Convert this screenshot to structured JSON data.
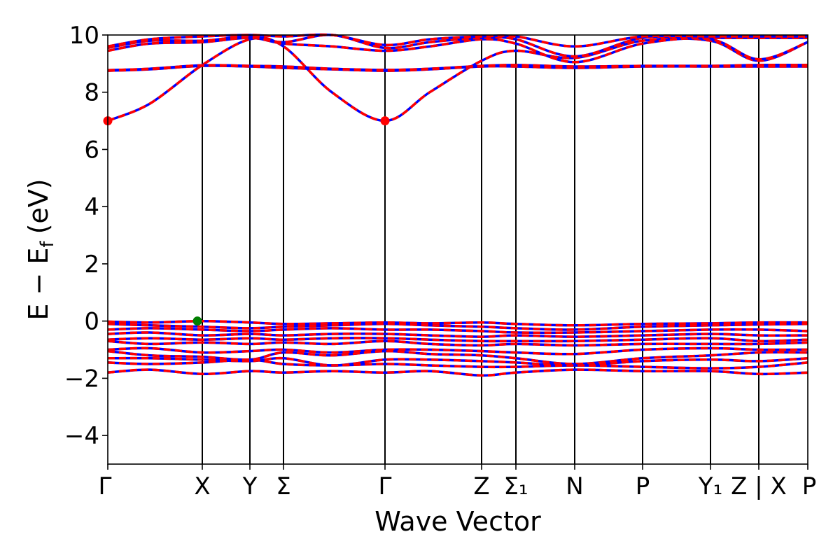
{
  "chart_data": {
    "type": "line",
    "xlabel": "Wave Vector",
    "ylabel": "E − E_f (eV)",
    "ylabel_parts": {
      "main": "E − E",
      "sub": "f",
      "unit": "(eV)"
    },
    "ylim": [
      -5,
      10
    ],
    "yticks": [
      -4,
      -2,
      0,
      2,
      4,
      6,
      8,
      10
    ],
    "ytick_labels": [
      "−4",
      "−2",
      "0",
      "2",
      "4",
      "6",
      "8",
      "10"
    ],
    "xlim": [
      0,
      100
    ],
    "high_symmetry_points": [
      {
        "label": "Γ",
        "x": 0
      },
      {
        "label": "X",
        "x": 13.5
      },
      {
        "label": "Y",
        "x": 20.3
      },
      {
        "label": "Σ",
        "x": 25.1
      },
      {
        "label": "Γ",
        "x": 39.6
      },
      {
        "label": "Z",
        "x": 53.4
      },
      {
        "label": "Σ₁",
        "x": 58.3
      },
      {
        "label": "N",
        "x": 66.7
      },
      {
        "label": "P",
        "x": 76.4
      },
      {
        "label": "Y₁",
        "x": 86.1
      },
      {
        "label": "Z | X",
        "x": 93.0
      },
      {
        "label": "P",
        "x": 100
      }
    ],
    "series_colors": {
      "spin_up": "#0000ff",
      "spin_down": "#ff0000"
    },
    "markers": [
      {
        "type": "CBM",
        "x": 0,
        "y": 7.0,
        "color": "#ff0000"
      },
      {
        "type": "CBM",
        "x": 39.6,
        "y": 7.0,
        "color": "#ff0000"
      },
      {
        "type": "VBM",
        "x": 12.8,
        "y": 0.0,
        "color": "#007f00"
      }
    ],
    "bands": [
      {
        "x": [
          0,
          6,
          13.5,
          20.3,
          25.1,
          32,
          39.6,
          46,
          53.4,
          58.3,
          66.7,
          76.4,
          86.1,
          93.0,
          100
        ],
        "y": [
          7.0,
          7.6,
          8.95,
          9.85,
          9.6,
          8.0,
          7.0,
          8.0,
          9.1,
          9.45,
          9.2,
          9.8,
          9.8,
          9.1,
          9.75
        ]
      },
      {
        "x": [
          0,
          6,
          13.5,
          20.3,
          25.1,
          32,
          39.6,
          46,
          53.4,
          58.3,
          66.7,
          76.4,
          86.1,
          93.0,
          100
        ],
        "y": [
          8.75,
          8.8,
          8.92,
          8.9,
          8.85,
          8.8,
          8.75,
          8.8,
          8.9,
          8.9,
          8.85,
          8.9,
          8.9,
          8.9,
          8.9
        ]
      },
      {
        "x": [
          0,
          6,
          13.5,
          20.3,
          25.1,
          32,
          39.6,
          46,
          53.4,
          58.3,
          66.7,
          76.4,
          86.1,
          93.0,
          100
        ],
        "y": [
          8.77,
          8.82,
          8.94,
          8.92,
          8.9,
          8.82,
          8.78,
          8.82,
          8.92,
          8.95,
          8.9,
          8.92,
          8.92,
          8.95,
          8.95
        ]
      },
      {
        "x": [
          0,
          6,
          13.5,
          20.3,
          25.1,
          32,
          39.6,
          46,
          53.4,
          58.3,
          66.7,
          76.4,
          86.1,
          93.0,
          100
        ],
        "y": [
          9.45,
          9.7,
          9.75,
          9.9,
          9.7,
          9.6,
          9.45,
          9.6,
          9.85,
          9.7,
          9.05,
          9.7,
          9.85,
          9.15,
          9.75
        ]
      },
      {
        "x": [
          0,
          6,
          13.5,
          20.3,
          25.1,
          32,
          39.6,
          46,
          53.4,
          58.3,
          66.7,
          76.4,
          86.1,
          93.0,
          100
        ],
        "y": [
          9.55,
          9.8,
          9.8,
          9.95,
          9.75,
          10.0,
          9.55,
          9.75,
          9.9,
          9.85,
          9.25,
          9.9,
          9.9,
          9.9,
          9.9
        ]
      },
      {
        "x": [
          0,
          6,
          13.5,
          20.3,
          25.1,
          32,
          39.6,
          46,
          53.4,
          58.3,
          66.7,
          76.4,
          86.1,
          93.0,
          100
        ],
        "y": [
          9.6,
          9.85,
          9.95,
          10.0,
          9.95,
          10.0,
          9.65,
          9.85,
          9.95,
          9.95,
          9.6,
          9.95,
          9.95,
          9.95,
          9.95
        ]
      },
      {
        "x": [
          0,
          6,
          13.5,
          20.3,
          25.1,
          32,
          39.6,
          46,
          53.4,
          58.3,
          66.7,
          76.4,
          86.1,
          93.0,
          100
        ],
        "y": [
          -0.02,
          -0.05,
          0.0,
          -0.05,
          -0.1,
          -0.08,
          -0.05,
          -0.08,
          -0.05,
          -0.1,
          -0.15,
          -0.1,
          -0.08,
          -0.05,
          -0.05
        ]
      },
      {
        "x": [
          0,
          6,
          13.5,
          20.3,
          25.1,
          32,
          39.6,
          46,
          53.4,
          58.3,
          66.7,
          76.4,
          86.1,
          93.0,
          100
        ],
        "y": [
          -0.1,
          -0.15,
          -0.2,
          -0.25,
          -0.2,
          -0.15,
          -0.1,
          -0.15,
          -0.2,
          -0.25,
          -0.3,
          -0.2,
          -0.15,
          -0.12,
          -0.1
        ]
      },
      {
        "x": [
          0,
          6,
          13.5,
          20.3,
          25.1,
          32,
          39.6,
          46,
          53.4,
          58.3,
          66.7,
          76.4,
          86.1,
          93.0,
          100
        ],
        "y": [
          -0.3,
          -0.25,
          -0.3,
          -0.35,
          -0.3,
          -0.25,
          -0.3,
          -0.3,
          -0.35,
          -0.4,
          -0.4,
          -0.35,
          -0.3,
          -0.3,
          -0.35
        ]
      },
      {
        "x": [
          0,
          6,
          13.5,
          20.3,
          25.1,
          32,
          39.6,
          46,
          53.4,
          58.3,
          66.7,
          76.4,
          86.1,
          93.0,
          100
        ],
        "y": [
          -0.45,
          -0.4,
          -0.5,
          -0.45,
          -0.5,
          -0.45,
          -0.45,
          -0.5,
          -0.55,
          -0.5,
          -0.55,
          -0.5,
          -0.45,
          -0.5,
          -0.5
        ]
      },
      {
        "x": [
          0,
          6,
          13.5,
          20.3,
          25.1,
          32,
          39.6,
          46,
          53.4,
          58.3,
          66.7,
          76.4,
          86.1,
          93.0,
          100
        ],
        "y": [
          -0.65,
          -0.6,
          -0.65,
          -0.6,
          -0.65,
          -0.6,
          -0.6,
          -0.65,
          -0.7,
          -0.7,
          -0.7,
          -0.65,
          -0.6,
          -0.7,
          -0.65
        ]
      },
      {
        "x": [
          0,
          6,
          13.5,
          20.3,
          25.1,
          32,
          39.6,
          46,
          53.4,
          58.3,
          66.7,
          76.4,
          86.1,
          93.0,
          100
        ],
        "y": [
          -0.7,
          -0.8,
          -0.75,
          -0.8,
          -0.75,
          -0.8,
          -0.7,
          -0.8,
          -0.85,
          -0.8,
          -0.85,
          -0.8,
          -0.8,
          -0.8,
          -0.75
        ]
      },
      {
        "x": [
          0,
          6,
          13.5,
          20.3,
          25.1,
          32,
          39.6,
          46,
          53.4,
          58.3,
          66.7,
          76.4,
          86.1,
          93.0,
          100
        ],
        "y": [
          -1.0,
          -0.95,
          -1.1,
          -1.05,
          -1.0,
          -1.1,
          -1.0,
          -1.0,
          -1.05,
          -1.1,
          -1.15,
          -1.0,
          -0.95,
          -1.0,
          -1.0
        ]
      },
      {
        "x": [
          0,
          6,
          13.5,
          20.3,
          25.1,
          32,
          39.6,
          46,
          53.4,
          58.3,
          66.7,
          76.4,
          86.1,
          93.0,
          100
        ],
        "y": [
          -1.05,
          -1.2,
          -1.25,
          -1.35,
          -1.1,
          -1.2,
          -1.05,
          -1.15,
          -1.2,
          -1.3,
          -1.5,
          -1.3,
          -1.2,
          -1.1,
          -1.1
        ]
      },
      {
        "x": [
          0,
          6,
          13.5,
          20.3,
          25.1,
          32,
          39.6,
          46,
          53.4,
          58.3,
          66.7,
          76.4,
          86.1,
          93.0,
          100
        ],
        "y": [
          -1.3,
          -1.3,
          -1.35,
          -1.4,
          -1.3,
          -1.55,
          -1.35,
          -1.35,
          -1.4,
          -1.45,
          -1.55,
          -1.4,
          -1.35,
          -1.4,
          -1.3
        ]
      },
      {
        "x": [
          0,
          6,
          13.5,
          20.3,
          25.1,
          32,
          39.6,
          46,
          53.4,
          58.3,
          66.7,
          76.4,
          86.1,
          93.0,
          100
        ],
        "y": [
          -1.45,
          -1.5,
          -1.45,
          -1.35,
          -1.5,
          -1.55,
          -1.5,
          -1.55,
          -1.6,
          -1.6,
          -1.55,
          -1.6,
          -1.65,
          -1.6,
          -1.45
        ]
      },
      {
        "x": [
          0,
          6,
          13.5,
          20.3,
          25.1,
          32,
          39.6,
          46,
          53.4,
          58.3,
          66.7,
          76.4,
          86.1,
          93.0,
          100
        ],
        "y": [
          -1.8,
          -1.7,
          -1.85,
          -1.75,
          -1.8,
          -1.75,
          -1.8,
          -1.75,
          -1.9,
          -1.8,
          -1.7,
          -1.75,
          -1.75,
          -1.85,
          -1.8
        ]
      }
    ]
  }
}
